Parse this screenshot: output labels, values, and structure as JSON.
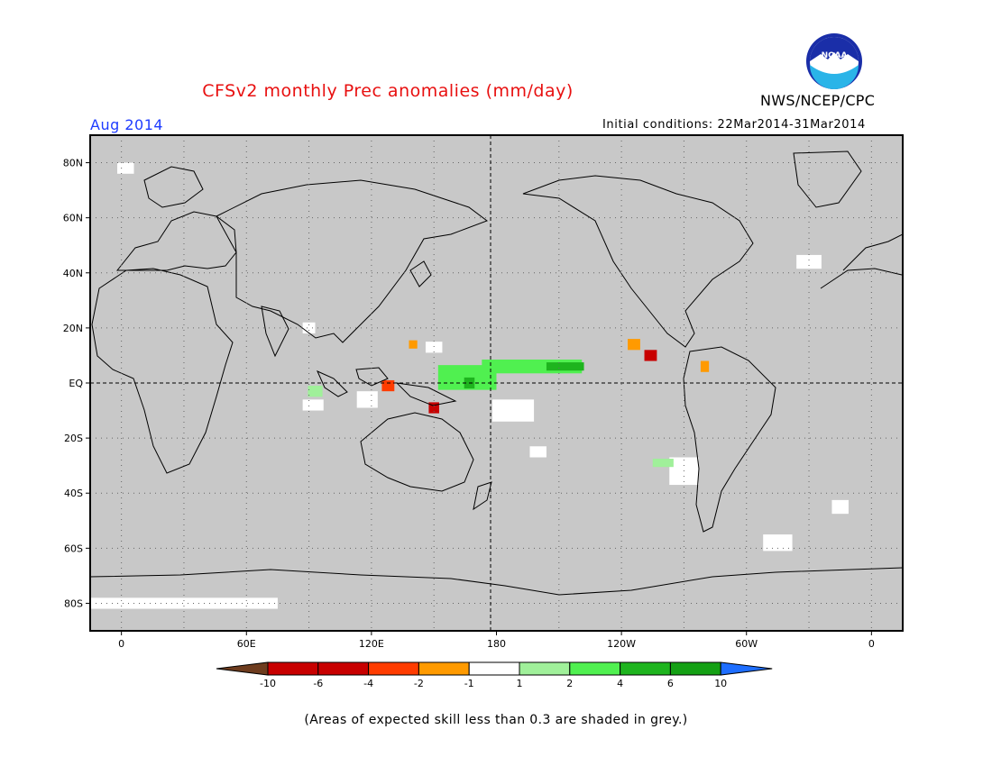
{
  "header": {
    "title": "CFSv2 monthly Prec anomalies (mm/day)",
    "agency": "NWS/NCEP/CPC",
    "month": "Aug 2014",
    "initial_conditions": "Initial conditions: 22Mar2014-31Mar2014",
    "logo_text": "NOAA"
  },
  "map": {
    "lat_ticks": [
      "80N",
      "60N",
      "40N",
      "20N",
      "EQ",
      "20S",
      "40S",
      "60S",
      "80S"
    ],
    "lat_values": [
      80,
      60,
      40,
      20,
      0,
      -20,
      -40,
      -60,
      -80
    ],
    "lon_ticks": [
      "0",
      "60E",
      "120E",
      "180",
      "120W",
      "60W",
      "0"
    ],
    "lon_values": [
      0,
      60,
      120,
      180,
      240,
      300,
      360
    ],
    "lon_range": [
      -15,
      375
    ],
    "lat_range": [
      -90,
      90
    ],
    "background_color": "#c8c8c8",
    "white_areas": [
      {
        "lon": 118,
        "lat": -6,
        "w": 10,
        "h": 6
      },
      {
        "lon": 188,
        "lat": -10,
        "w": 20,
        "h": 8
      },
      {
        "lon": 270,
        "lat": -32,
        "w": 14,
        "h": 10
      },
      {
        "lon": 92,
        "lat": -8,
        "w": 10,
        "h": 4
      },
      {
        "lon": 315,
        "lat": -58,
        "w": 14,
        "h": 6
      },
      {
        "lon": 30,
        "lat": -80,
        "w": 90,
        "h": 4
      },
      {
        "lon": 330,
        "lat": 44,
        "w": 12,
        "h": 5
      },
      {
        "lon": 2,
        "lat": 78,
        "w": 8,
        "h": 4
      },
      {
        "lon": 150,
        "lat": 13,
        "w": 8,
        "h": 4
      },
      {
        "lon": 200,
        "lat": -25,
        "w": 8,
        "h": 4
      },
      {
        "lon": 90,
        "lat": 20,
        "w": 6,
        "h": 4
      },
      {
        "lon": 345,
        "lat": -45,
        "w": 8,
        "h": 5
      }
    ],
    "anomaly_patches": [
      {
        "lon": 197,
        "lat": 6,
        "w": 48,
        "h": 5,
        "color": "#50f050"
      },
      {
        "lon": 166,
        "lat": 2,
        "w": 28,
        "h": 9,
        "color": "#50f050"
      },
      {
        "lon": 167,
        "lat": 0,
        "w": 5,
        "h": 4,
        "color": "#1eb41e"
      },
      {
        "lon": 213,
        "lat": 6,
        "w": 18,
        "h": 3,
        "color": "#1eb41e"
      },
      {
        "lon": 93,
        "lat": -3,
        "w": 7,
        "h": 4,
        "color": "#a0f09a"
      },
      {
        "lon": 260,
        "lat": -29,
        "w": 10,
        "h": 3,
        "color": "#a0f09a"
      },
      {
        "lon": 246,
        "lat": 14,
        "w": 6,
        "h": 4,
        "color": "#ff9a00"
      },
      {
        "lon": 254,
        "lat": 10,
        "w": 6,
        "h": 4,
        "color": "#c80000"
      },
      {
        "lon": 280,
        "lat": 6,
        "w": 4,
        "h": 4,
        "color": "#ff9a00"
      },
      {
        "lon": 128,
        "lat": -1,
        "w": 6,
        "h": 4,
        "color": "#ff3c00"
      },
      {
        "lon": 150,
        "lat": -9,
        "w": 5,
        "h": 4,
        "color": "#c80000"
      },
      {
        "lon": 140,
        "lat": 14,
        "w": 4,
        "h": 3,
        "color": "#ff9a00"
      }
    ]
  },
  "legend": {
    "labels": [
      "-10",
      "-6",
      "-4",
      "-2",
      "-1",
      "1",
      "2",
      "4",
      "6",
      "10"
    ],
    "colors": [
      "#6e3c1e",
      "#c80000",
      "#c80000",
      "#ff3c00",
      "#ff9a00",
      "#ffffff",
      "#a0f09a",
      "#50f050",
      "#1eb41e",
      "#14a014",
      "#1e6eff"
    ]
  },
  "footnote": "(Areas of expected skill less than 0.3 are shaded in grey.)"
}
